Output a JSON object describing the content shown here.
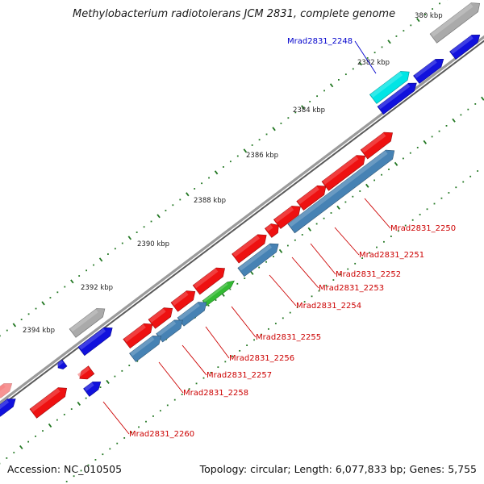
{
  "title": "Methylobacterium radiotolerans JCM 2831, complete genome",
  "accession": "Accession: NC_010505",
  "summary": "Topology: circular; Length: 6,077,833 bp; Genes: 5,755",
  "scale_labels": [
    "380 kbp",
    "2382 kbp",
    "2384 kbp",
    "2386 kbp",
    "2388 kbp",
    "2390 kbp",
    "2392 kbp",
    "2394 kbp"
  ],
  "gene_labels": [
    {
      "text": "Mrad2831_2248",
      "color": "#0000cc"
    },
    {
      "text": "Mrad2831_2250",
      "color": "#cc0000"
    },
    {
      "text": "Mrad2831_2251",
      "color": "#cc0000"
    },
    {
      "text": "Mrad2831_2252",
      "color": "#cc0000"
    },
    {
      "text": "Mrad2831_2253",
      "color": "#cc0000"
    },
    {
      "text": "Mrad2831_2254",
      "color": "#cc0000"
    },
    {
      "text": "Mrad2831_2255",
      "color": "#cc0000"
    },
    {
      "text": "Mrad2831_2256",
      "color": "#cc0000"
    },
    {
      "text": "Mrad2831_2257",
      "color": "#cc0000"
    },
    {
      "text": "Mrad2831_2258",
      "color": "#cc0000"
    },
    {
      "text": "Mrad2831_2260",
      "color": "#cc0000"
    }
  ],
  "colors": {
    "backbone": "#888888",
    "forward_gene": "#ee1111",
    "reverse_gene": "#1111dd",
    "rna_gene": "#00e5e5",
    "pseudo_gene": "#aaaaaa",
    "other_gene": "#4682b4",
    "green_gene": "#33bb33",
    "tick": "#227722"
  }
}
